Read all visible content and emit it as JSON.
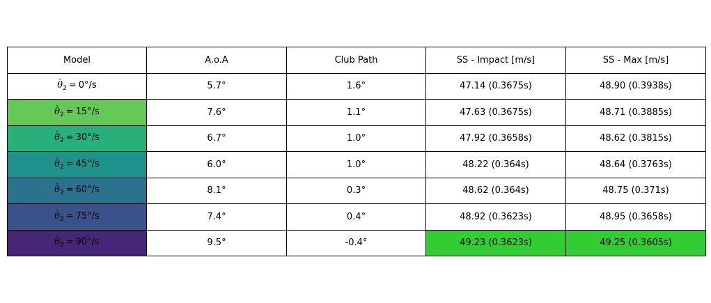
{
  "chart_data": {
    "type": "table",
    "columns": [
      "Model",
      "A.o.A",
      "Club Path",
      "SS - Impact [m/s]",
      "SS - Max [m/s]"
    ],
    "rows": [
      {
        "theta": "θ",
        "sub": "2",
        "value": "0°/s",
        "aoa": "5.7°",
        "club_path": "1.6°",
        "ss_impact": "47.14 (0.3675s)",
        "ss_max": "48.90 (0.3938s)",
        "model_color": "#ffffff",
        "impact_color": "#ffffff",
        "max_color": "#ffffff"
      },
      {
        "theta": "θ",
        "sub": "2",
        "value": "15°/s",
        "aoa": "7.6°",
        "club_path": "1.1°",
        "ss_impact": "47.63 (0.3675s)",
        "ss_max": "48.71 (0.3885s)",
        "model_color": "#65c95a",
        "impact_color": "#ffffff",
        "max_color": "#ffffff"
      },
      {
        "theta": "θ",
        "sub": "2",
        "value": "30°/s",
        "aoa": "6.7°",
        "club_path": "1.0°",
        "ss_impact": "47.92 (0.3658s)",
        "ss_max": "48.62 (0.3815s)",
        "model_color": "#28b07a",
        "impact_color": "#ffffff",
        "max_color": "#ffffff"
      },
      {
        "theta": "θ",
        "sub": "2",
        "value": "45°/s",
        "aoa": "6.0°",
        "club_path": "1.0°",
        "ss_impact": "48.22 (0.364s)",
        "ss_max": "48.64 (0.3763s)",
        "model_color": "#1f928b",
        "impact_color": "#ffffff",
        "max_color": "#ffffff"
      },
      {
        "theta": "θ",
        "sub": "2",
        "value": "60°/s",
        "aoa": "8.1°",
        "club_path": "0.3°",
        "ss_impact": "48.62 (0.364s)",
        "ss_max": "48.75 (0.371s)",
        "model_color": "#2c718e",
        "impact_color": "#ffffff",
        "max_color": "#ffffff"
      },
      {
        "theta": "θ",
        "sub": "2",
        "value": "75°/s",
        "aoa": "7.4°",
        "club_path": "0.4°",
        "ss_impact": "48.92 (0.3623s)",
        "ss_max": "48.95 (0.3658s)",
        "model_color": "#3b518b",
        "impact_color": "#ffffff",
        "max_color": "#ffffff"
      },
      {
        "theta": "θ",
        "sub": "2",
        "value": "90°/s",
        "aoa": "9.5°",
        "club_path": "-0.4°",
        "ss_impact": "49.23 (0.3623s)",
        "ss_max": "49.25 (0.3605s)",
        "model_color": "#472678",
        "impact_color": "#32cd32",
        "max_color": "#32cd32"
      }
    ]
  }
}
